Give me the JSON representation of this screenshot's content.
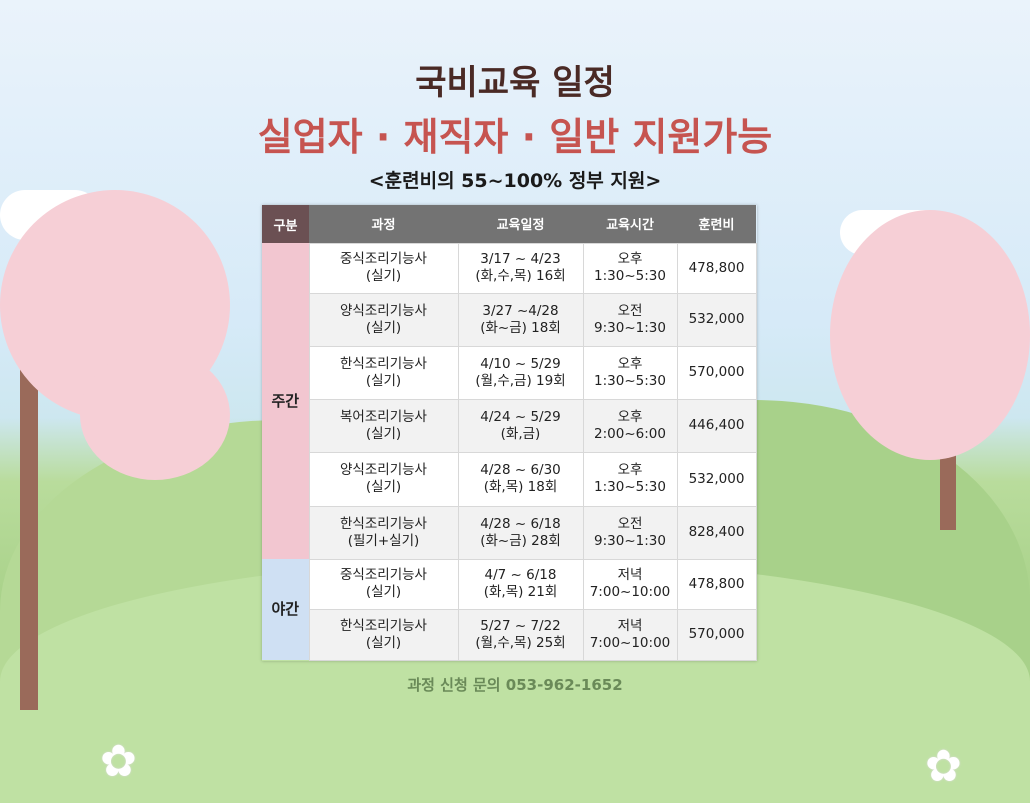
{
  "header": {
    "title": "국비교육 일정",
    "subtitle": "실업자 · 재직자 · 일반 지원가능",
    "note": "<훈련비의 55~100% 정부 지원>"
  },
  "table": {
    "headers": [
      "구분",
      "과정",
      "교육일정",
      "교육시간",
      "훈련비"
    ],
    "categories": {
      "day": "주간",
      "night": "야간"
    },
    "rows": [
      {
        "course": "중식조리기능사",
        "type": "(실기)",
        "dates": "3/17 ~ 4/23",
        "days": "(화,수,목) 16회",
        "period": "오후",
        "time": "1:30~5:30",
        "fee": "478,800"
      },
      {
        "course": "양식조리기능사",
        "type": "(실기)",
        "dates": "3/27 ~4/28",
        "days": "(화~금) 18회",
        "period": "오전",
        "time": "9:30~1:30",
        "fee": "532,000"
      },
      {
        "course": "한식조리기능사",
        "type": "(실기)",
        "dates": "4/10 ~ 5/29",
        "days": "(월,수,금) 19회",
        "period": "오후",
        "time": "1:30~5:30",
        "fee": "570,000"
      },
      {
        "course": "복어조리기능사",
        "type": "(실기)",
        "dates": "4/24 ~ 5/29",
        "days": "(화,금)",
        "period": "오후",
        "time": "2:00~6:00",
        "fee": "446,400"
      },
      {
        "course": "양식조리기능사",
        "type": "(실기)",
        "dates": "4/28 ~ 6/30",
        "days": "(화,목) 18회",
        "period": "오후",
        "time": "1:30~5:30",
        "fee": "532,000"
      },
      {
        "course": "한식조리기능사",
        "type": "(필기+실기)",
        "dates": "4/28 ~ 6/18",
        "days": "(화~금) 28회",
        "period": "오전",
        "time": "9:30~1:30",
        "fee": "828,400"
      },
      {
        "course": "중식조리기능사",
        "type": "(실기)",
        "dates": "4/7 ~ 6/18",
        "days": "(화,목) 21회",
        "period": "저녁",
        "time": "7:00~10:00",
        "fee": "478,800"
      },
      {
        "course": "한식조리기능사",
        "type": "(실기)",
        "dates": "5/27 ~ 7/22",
        "days": "(월,수,목) 25회",
        "period": "저녁",
        "time": "7:00~10:00",
        "fee": "570,000"
      }
    ]
  },
  "footer": {
    "contact": "과정 신청 문의 053-962-1652"
  }
}
